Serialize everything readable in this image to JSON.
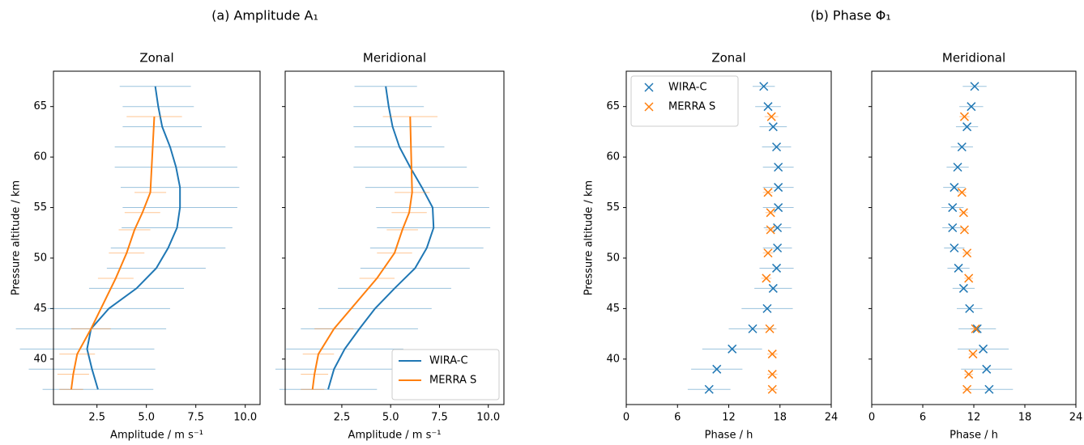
{
  "figure_titles": [
    "(a)    Amplitude   A₁",
    "(b) Phase Φ₁"
  ],
  "chart_data": [
    {
      "type": "line",
      "title": "Zonal",
      "x_label": "Amplitude / m s⁻¹",
      "y_label": "Pressure altitude / km",
      "xlim": [
        0.3,
        10.75
      ],
      "ylim": [
        35.5,
        68.5
      ],
      "xticks": [
        2.5,
        {
          "value": 5,
          "label": "5.0"
        },
        7.5,
        {
          "value": 10,
          "label": "10.0"
        }
      ],
      "yticks": [
        40,
        45,
        50,
        55,
        60,
        65
      ],
      "ytick_labels": true,
      "series": [
        {
          "name": "WIRA-C",
          "color": "#1f77b4",
          "y": [
            37,
            39,
            41,
            43,
            45,
            47,
            49,
            51,
            53,
            55,
            57,
            59,
            61,
            63,
            65,
            67
          ],
          "values": [
            2.55,
            2.25,
            2.0,
            2.2,
            3.1,
            4.5,
            5.5,
            6.1,
            6.55,
            6.7,
            6.7,
            6.5,
            6.2,
            5.8,
            5.6,
            5.45
          ],
          "errors": [
            2.8,
            3.2,
            3.4,
            3.8,
            3.1,
            2.4,
            2.5,
            2.9,
            2.8,
            2.9,
            3.0,
            3.1,
            2.8,
            2.0,
            1.8,
            1.8
          ]
        },
        {
          "name": "MERRA S",
          "color": "#ff7f0e",
          "y": [
            37,
            38.5,
            40.5,
            43,
            48,
            50.5,
            52.8,
            54.5,
            56.5,
            64
          ],
          "values": [
            1.2,
            1.3,
            1.5,
            2.2,
            3.45,
            4.0,
            4.4,
            4.8,
            5.2,
            5.4
          ],
          "errors": [
            0.6,
            0.8,
            0.9,
            1.0,
            0.9,
            0.9,
            0.8,
            0.9,
            0.8,
            1.4
          ]
        }
      ]
    },
    {
      "type": "line",
      "title": "Meridional",
      "x_label": "Amplitude / m s⁻¹",
      "xlim": [
        -0.4,
        10.8
      ],
      "ylim": [
        35.5,
        68.5
      ],
      "xticks": [
        2.5,
        {
          "value": 5,
          "label": "5.0"
        },
        7.5,
        {
          "value": 10,
          "label": "10.0"
        }
      ],
      "yticks": [
        40,
        45,
        50,
        55,
        60,
        65
      ],
      "ytick_labels": false,
      "legend": "lower right",
      "series": [
        {
          "name": "WIRA-C",
          "color": "#1f77b4",
          "y": [
            37,
            39,
            41,
            43,
            45,
            47,
            49,
            51,
            53,
            55,
            57,
            59,
            61,
            63,
            65,
            67
          ],
          "values": [
            1.8,
            2.1,
            2.65,
            3.4,
            4.2,
            5.2,
            6.25,
            6.85,
            7.2,
            7.15,
            6.6,
            6.0,
            5.45,
            5.1,
            4.9,
            4.75
          ],
          "errors": [
            2.5,
            3.0,
            3.0,
            3.0,
            2.9,
            2.9,
            2.8,
            2.9,
            2.9,
            2.9,
            2.9,
            2.9,
            2.3,
            2.0,
            1.8,
            1.6
          ]
        },
        {
          "name": "MERRA S",
          "color": "#ff7f0e",
          "y": [
            37,
            38.5,
            40.5,
            43,
            48,
            50.5,
            52.8,
            54.5,
            56.5,
            64
          ],
          "values": [
            1.0,
            1.1,
            1.3,
            2.1,
            4.3,
            5.2,
            5.6,
            5.95,
            6.1,
            6.0
          ],
          "errors": [
            0.6,
            0.7,
            0.8,
            1.0,
            0.9,
            0.9,
            0.8,
            0.9,
            0.9,
            1.4
          ]
        }
      ]
    },
    {
      "type": "scatter",
      "title": "Zonal",
      "x_label": "Phase / h",
      "y_label": "Pressure altitude / km",
      "xlim": [
        0,
        24
      ],
      "ylim": [
        35.5,
        68.5
      ],
      "xticks": [
        0,
        6,
        12,
        18,
        24
      ],
      "yticks": [
        40,
        45,
        50,
        55,
        60,
        65
      ],
      "ytick_labels": true,
      "legend": "upper left",
      "series": [
        {
          "name": "WIRA-C",
          "color": "#1f77b4",
          "y": [
            37,
            39,
            41,
            43,
            45,
            47,
            49,
            51,
            53,
            55,
            57,
            59,
            61,
            63,
            65,
            67
          ],
          "values": [
            9.7,
            10.6,
            12.4,
            14.8,
            16.5,
            17.2,
            17.6,
            17.7,
            17.7,
            17.8,
            17.8,
            17.8,
            17.6,
            17.2,
            16.6,
            16.1
          ],
          "errors": [
            2.5,
            3.0,
            3.5,
            2.8,
            3.0,
            2.2,
            2.0,
            1.7,
            1.6,
            1.8,
            1.8,
            1.8,
            1.7,
            1.6,
            1.5,
            1.3
          ]
        },
        {
          "name": "MERRA S",
          "color": "#ff7f0e",
          "y": [
            37,
            38.5,
            40.5,
            43,
            48,
            50.5,
            52.8,
            54.5,
            56.5,
            64
          ],
          "values": [
            17.1,
            17.1,
            17.1,
            16.8,
            16.4,
            16.6,
            16.9,
            16.9,
            16.6,
            17.0
          ],
          "errors": [
            0.6,
            0.6,
            0.6,
            0.7,
            0.6,
            0.6,
            0.6,
            0.6,
            0.6,
            0.8
          ]
        }
      ]
    },
    {
      "type": "scatter",
      "title": "Meridional",
      "x_label": "Phase / h",
      "xlim": [
        0,
        24
      ],
      "ylim": [
        35.5,
        68.5
      ],
      "xticks": [
        0,
        6,
        12,
        18,
        24
      ],
      "yticks": [
        40,
        45,
        50,
        55,
        60,
        65
      ],
      "ytick_labels": false,
      "series": [
        {
          "name": "WIRA-C",
          "color": "#1f77b4",
          "y": [
            37,
            39,
            41,
            43,
            45,
            47,
            49,
            51,
            53,
            55,
            57,
            59,
            61,
            63,
            65,
            67
          ],
          "values": [
            13.8,
            13.5,
            13.1,
            12.4,
            11.5,
            10.8,
            10.2,
            9.7,
            9.5,
            9.5,
            9.7,
            10.1,
            10.6,
            11.2,
            11.7,
            12.1
          ],
          "errors": [
            2.8,
            3.0,
            3.0,
            2.2,
            1.5,
            1.3,
            1.3,
            1.2,
            1.2,
            1.3,
            1.3,
            1.3,
            1.3,
            1.3,
            1.4,
            1.4
          ]
        },
        {
          "name": "MERRA S",
          "color": "#ff7f0e",
          "y": [
            37,
            38.5,
            40.5,
            43,
            48,
            50.5,
            52.8,
            54.5,
            56.5,
            64
          ],
          "values": [
            11.2,
            11.4,
            11.9,
            12.2,
            11.4,
            11.2,
            10.9,
            10.8,
            10.6,
            10.9
          ],
          "errors": [
            0.5,
            0.5,
            0.5,
            0.6,
            0.5,
            0.5,
            0.5,
            0.5,
            0.5,
            0.6
          ]
        }
      ]
    }
  ]
}
